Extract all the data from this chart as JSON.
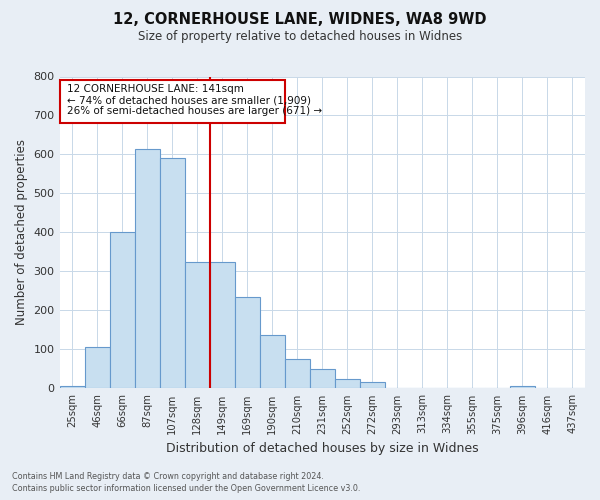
{
  "title_line1": "12, CORNERHOUSE LANE, WIDNES, WA8 9WD",
  "title_line2": "Size of property relative to detached houses in Widnes",
  "xlabel": "Distribution of detached houses by size in Widnes",
  "ylabel": "Number of detached properties",
  "bar_labels": [
    "25sqm",
    "46sqm",
    "66sqm",
    "87sqm",
    "107sqm",
    "128sqm",
    "149sqm",
    "169sqm",
    "190sqm",
    "210sqm",
    "231sqm",
    "252sqm",
    "272sqm",
    "293sqm",
    "313sqm",
    "334sqm",
    "355sqm",
    "375sqm",
    "396sqm",
    "416sqm",
    "437sqm"
  ],
  "bar_values": [
    5,
    105,
    400,
    615,
    590,
    325,
    325,
    235,
    138,
    76,
    50,
    25,
    16,
    0,
    0,
    0,
    0,
    0,
    7,
    0,
    0
  ],
  "bar_color": "#c8dff0",
  "bar_edge_color": "#6699cc",
  "vline_index": 6,
  "vline_color": "#cc0000",
  "ylim": [
    0,
    800
  ],
  "yticks": [
    0,
    100,
    200,
    300,
    400,
    500,
    600,
    700,
    800
  ],
  "annotation_title": "12 CORNERHOUSE LANE: 141sqm",
  "annotation_line1": "← 74% of detached houses are smaller (1,909)",
  "annotation_line2": "26% of semi-detached houses are larger (671) →",
  "annotation_box_color": "#ffffff",
  "annotation_box_edge": "#cc0000",
  "footer_line1": "Contains HM Land Registry data © Crown copyright and database right 2024.",
  "footer_line2": "Contains public sector information licensed under the Open Government Licence v3.0.",
  "background_color": "#e8eef5",
  "plot_bg_color": "#ffffff"
}
